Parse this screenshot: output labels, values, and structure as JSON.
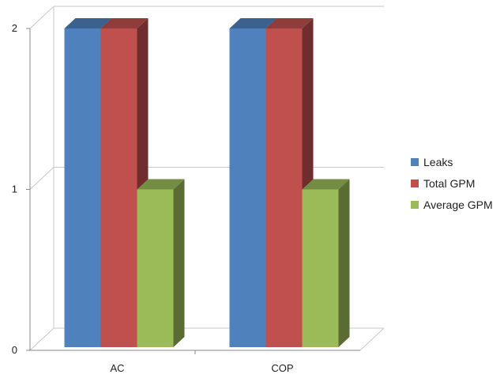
{
  "chart_data": {
    "type": "bar",
    "categories": [
      "AC",
      "COP"
    ],
    "series": [
      {
        "name": "Leaks",
        "values": [
          2,
          2
        ],
        "color": "#4F81BD"
      },
      {
        "name": "Total GPM",
        "values": [
          2,
          2
        ],
        "color": "#C0504D"
      },
      {
        "name": "Average GPM",
        "values": [
          1,
          1
        ],
        "color": "#9BBB59"
      }
    ],
    "y_ticks": [
      "0",
      "1",
      "2"
    ],
    "ylim": [
      0,
      2
    ],
    "grid": true,
    "legend_position": "right",
    "style": "3d-clustered-column"
  }
}
